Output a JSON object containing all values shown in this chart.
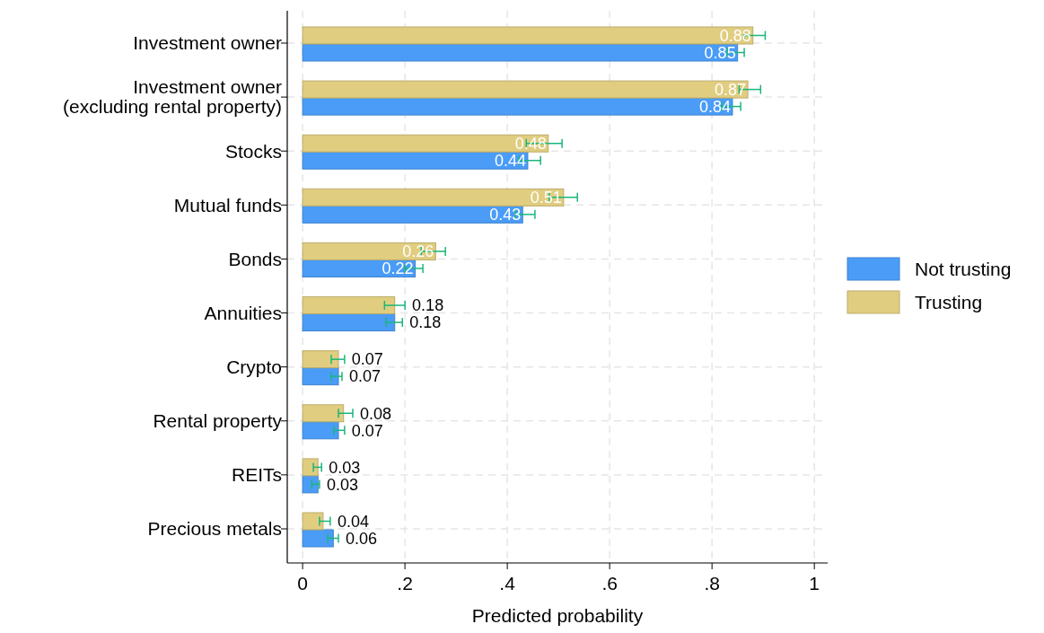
{
  "chart_data": {
    "type": "bar",
    "orientation": "horizontal",
    "xlabel": "Predicted probability",
    "categories": [
      "Investment owner",
      "Investment owner\n(excluding rental property)",
      "Stocks",
      "Mutual funds",
      "Bonds",
      "Annuities",
      "Crypto",
      "Rental property",
      "REITs",
      "Precious metals"
    ],
    "series": [
      {
        "name": "Not trusting",
        "color": "#4a9cf7",
        "values": [
          0.85,
          0.84,
          0.44,
          0.43,
          0.22,
          0.18,
          0.07,
          0.07,
          0.03,
          0.06
        ],
        "errors": [
          [
            0.83,
            0.863
          ],
          [
            0.819,
            0.856
          ],
          [
            0.423,
            0.465
          ],
          [
            0.416,
            0.454
          ],
          [
            0.2,
            0.235
          ],
          [
            0.163,
            0.195
          ],
          [
            0.056,
            0.077
          ],
          [
            0.061,
            0.082
          ],
          [
            0.018,
            0.033
          ],
          [
            0.049,
            0.07
          ]
        ]
      },
      {
        "name": "Trusting",
        "color": "#e0cd80",
        "values": [
          0.88,
          0.87,
          0.48,
          0.51,
          0.26,
          0.18,
          0.07,
          0.08,
          0.03,
          0.04
        ],
        "errors": [
          [
            0.863,
            0.904
          ],
          [
            0.853,
            0.895
          ],
          [
            0.437,
            0.507
          ],
          [
            0.482,
            0.537
          ],
          [
            0.232,
            0.279
          ],
          [
            0.16,
            0.2
          ],
          [
            0.056,
            0.082
          ],
          [
            0.07,
            0.098
          ],
          [
            0.021,
            0.037
          ],
          [
            0.033,
            0.054
          ]
        ]
      }
    ],
    "xlim": [
      -0.03,
      1.026
    ],
    "xticks": [
      {
        "value": 0,
        "label": "0"
      },
      {
        "value": 0.2,
        "label": ".2"
      },
      {
        "value": 0.4,
        "label": ".4"
      },
      {
        "value": 0.6,
        "label": ".6"
      },
      {
        "value": 0.8,
        "label": ".8"
      },
      {
        "value": 1,
        "label": "1"
      }
    ],
    "grid": true,
    "legend": "right",
    "data_labels": true
  }
}
